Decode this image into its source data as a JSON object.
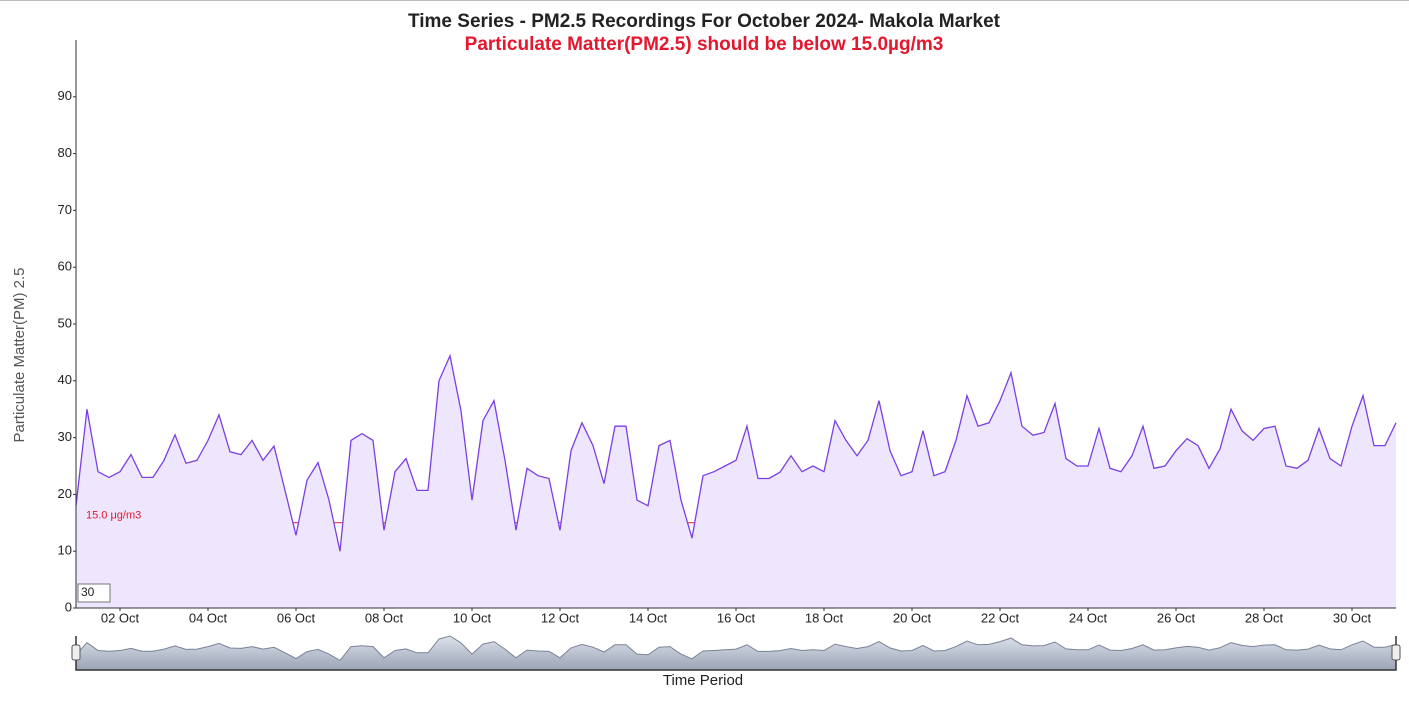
{
  "chart_data": {
    "type": "line",
    "title": "Time Series - PM2.5 Recordings For October 2024- Makola Market",
    "subtitle": "Particulate Matter(PM2.5) should be below 15.0µg/m3",
    "y_label": "Particulate Matter(PM) 2.5",
    "x_label": "Time Period",
    "roll_period": 30,
    "color": "#7b3fe4",
    "fill_color": "#eee6fc",
    "threshold": {
      "value": 15,
      "label": "15.0 μg/m3",
      "color": "#e3172e"
    },
    "x": [
      1,
      1.25,
      1.5,
      1.75,
      2,
      2.25,
      2.5,
      2.75,
      3,
      3.25,
      3.5,
      3.75,
      4,
      4.25,
      4.5,
      4.75,
      5,
      5.25,
      5.5,
      5.75,
      6,
      6.25,
      6.5,
      6.75,
      7,
      7.25,
      7.5,
      7.75,
      8,
      8.25,
      8.5,
      8.75,
      9,
      9.25,
      9.5,
      9.75,
      10,
      10.25,
      10.5,
      10.75,
      11,
      11.25,
      11.5,
      11.75,
      12,
      12.25,
      12.5,
      12.75,
      13,
      13.25,
      13.5,
      13.75,
      14,
      14.25,
      14.5,
      14.75,
      15,
      15.25,
      15.5,
      15.75,
      16,
      16.25,
      16.5,
      16.75,
      17,
      17.25,
      17.5,
      17.75,
      18,
      18.25,
      18.5,
      18.75,
      19,
      19.25,
      19.5,
      19.75,
      20,
      20.25,
      20.5,
      20.75,
      21,
      21.25,
      21.5,
      21.75,
      22,
      22.25,
      22.5,
      22.75,
      23,
      23.25,
      23.5,
      23.75,
      24,
      24.25,
      24.5,
      24.75,
      25,
      25.25,
      25.5,
      25.75,
      26,
      26.25,
      26.5,
      26.75,
      27,
      27.25,
      27.5,
      27.75,
      28,
      28.25,
      28.5,
      28.75,
      29,
      29.25,
      29.5,
      29.75,
      30,
      30.25,
      30.5,
      30.75,
      31
    ],
    "values": [
      18,
      35,
      24,
      23,
      24,
      27,
      23,
      23,
      26,
      30.5,
      25.5,
      26,
      29.5,
      34,
      27.5,
      27,
      29.5,
      26,
      28.5,
      20.7,
      12.8,
      22.5,
      25.6,
      19,
      10,
      29.5,
      30.7,
      29.5,
      13.7,
      24,
      26.3,
      20.7,
      20.7,
      40,
      44.4,
      34.7,
      19,
      33,
      36.5,
      26,
      13.7,
      24.6,
      23.3,
      22.8,
      13.7,
      27.7,
      32.6,
      28.6,
      21.9,
      32,
      32,
      19,
      18,
      28.6,
      29.5,
      19,
      12.3,
      23.3,
      24,
      25,
      26,
      32,
      22.8,
      22.8,
      23.9,
      26.8,
      24,
      25,
      24,
      33,
      29.5,
      26.8,
      29.5,
      36.5,
      27.7,
      23.3,
      24,
      31.2,
      23.3,
      24,
      29.5,
      37.4,
      32,
      32.6,
      36.5,
      41.4,
      32,
      30.4,
      30.9,
      36,
      26.3,
      25,
      25,
      31.6,
      24.6,
      24,
      26.8,
      32,
      24.6,
      25,
      27.7,
      29.8,
      28.6,
      24.6,
      28,
      35,
      31.2,
      29.5,
      31.6,
      32,
      25,
      24.6,
      26,
      31.6,
      26.3,
      25,
      32,
      37.4,
      28.6,
      28.6,
      32.6
    ],
    "xlim": [
      1,
      31
    ],
    "xticks": [
      {
        "value": 2,
        "label": "02 Oct"
      },
      {
        "value": 4,
        "label": "04 Oct"
      },
      {
        "value": 6,
        "label": "06 Oct"
      },
      {
        "value": 8,
        "label": "08 Oct"
      },
      {
        "value": 10,
        "label": "10 Oct"
      },
      {
        "value": 12,
        "label": "12 Oct"
      },
      {
        "value": 14,
        "label": "14 Oct"
      },
      {
        "value": 16,
        "label": "16 Oct"
      },
      {
        "value": 18,
        "label": "18 Oct"
      },
      {
        "value": 20,
        "label": "20 Oct"
      },
      {
        "value": 22,
        "label": "22 Oct"
      },
      {
        "value": 24,
        "label": "24 Oct"
      },
      {
        "value": 26,
        "label": "26 Oct"
      },
      {
        "value": 28,
        "label": "28 Oct"
      },
      {
        "value": 30,
        "label": "30 Oct"
      }
    ],
    "ylim": [
      0,
      100
    ],
    "yticks": [
      0,
      10,
      20,
      30,
      40,
      50,
      60,
      70,
      80,
      90
    ]
  }
}
